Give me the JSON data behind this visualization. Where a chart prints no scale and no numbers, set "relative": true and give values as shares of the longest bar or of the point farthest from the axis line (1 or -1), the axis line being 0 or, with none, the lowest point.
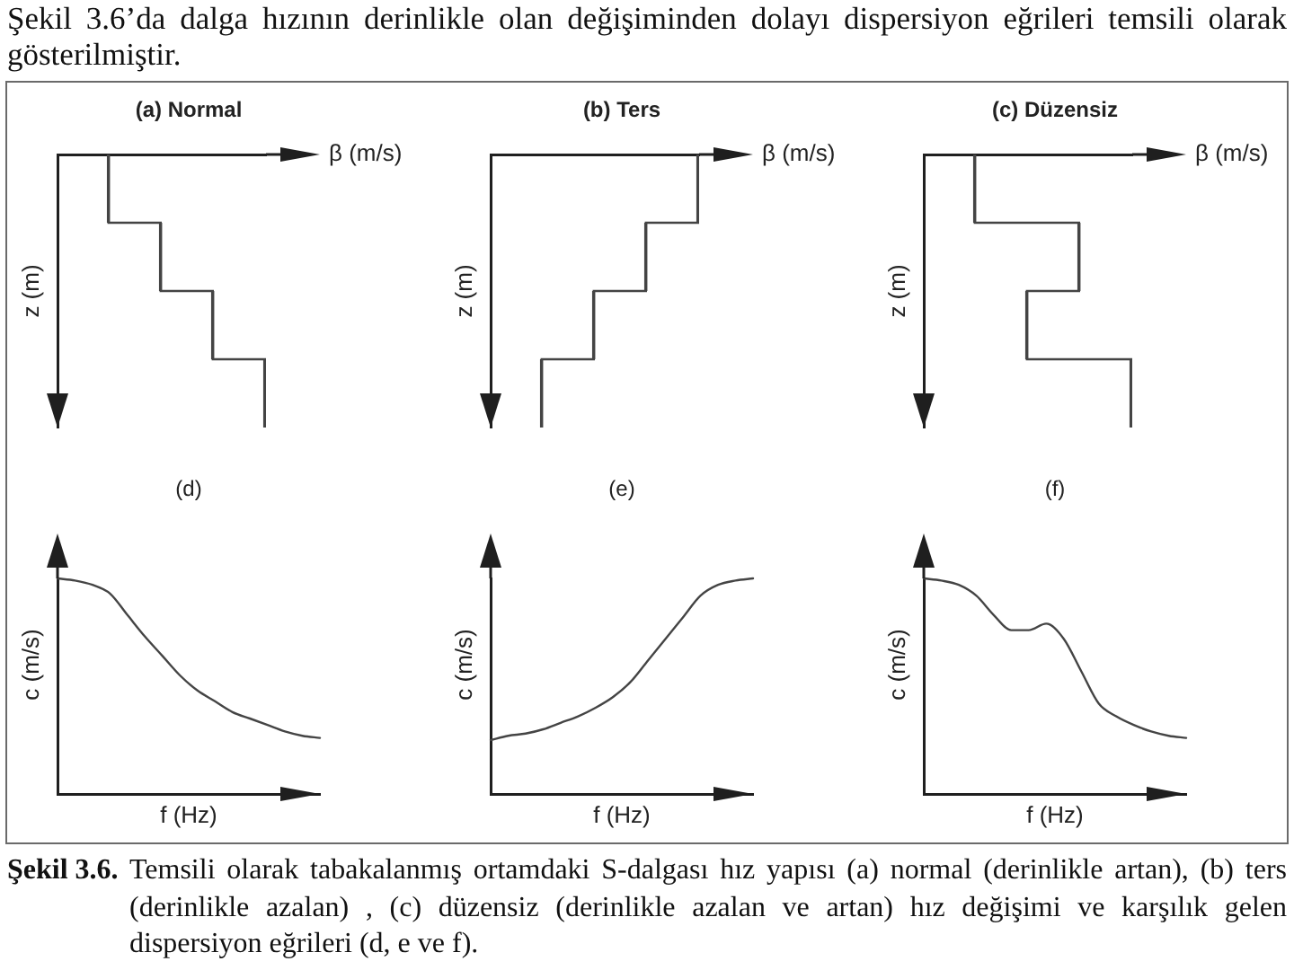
{
  "chart_data": [
    {
      "type": "bar",
      "orientation": "horizontal",
      "title": "(a) Normal",
      "xlabel": "β (m/s)",
      "ylabel": "z (m)",
      "relative": true,
      "categories": [
        null,
        null,
        null,
        null
      ],
      "values": [
        0.25,
        0.5,
        0.75,
        1
      ],
      "color": "#444444",
      "annotations": [
        "Şekil 3.6’da dalga hızının derinlikle olan değişiminden dolayı dispersiyon eğrileri temsili olarak gösterilmiştir."
      ]
    },
    {
      "type": "bar",
      "orientation": "horizontal",
      "title": "(b) Ters",
      "xlabel": "β (m/s)",
      "ylabel": "z (m)",
      "relative": true,
      "categories": [
        null,
        null,
        null,
        null
      ],
      "values": [
        1,
        0.75,
        0.5,
        0.25
      ],
      "color": "#444444"
    },
    {
      "type": "bar",
      "orientation": "horizontal",
      "title": "(c) Düzensiz",
      "xlabel": "β (m/s)",
      "ylabel": "z (m)",
      "relative": true,
      "categories": [
        null,
        null,
        null,
        null
      ],
      "values": [
        0.25,
        0.75,
        0.5,
        1
      ],
      "color": "#444444"
    },
    {
      "type": "line",
      "title": "(d)",
      "xlabel": "f (Hz)",
      "ylabel": "c (m/s)",
      "relative": true,
      "categories": [
        null,
        null,
        null,
        null,
        null,
        null,
        null,
        null,
        null,
        null,
        null,
        null,
        null,
        null,
        null,
        null
      ],
      "values": [
        1,
        0.99,
        0.97,
        0.93,
        0.83,
        0.73,
        0.64,
        0.55,
        0.48,
        0.43,
        0.38,
        0.35,
        0.32,
        0.29,
        0.27,
        0.26
      ],
      "color": "#444444"
    },
    {
      "type": "line",
      "title": "(e)",
      "xlabel": "f (Hz)",
      "ylabel": "c (m/s)",
      "relative": true,
      "categories": [
        null,
        null,
        null,
        null,
        null,
        null,
        null,
        null,
        null,
        null,
        null,
        null,
        null,
        null,
        null,
        null
      ],
      "values": [
        0.25,
        0.27,
        0.28,
        0.3,
        0.33,
        0.36,
        0.4,
        0.45,
        0.52,
        0.62,
        0.72,
        0.82,
        0.92,
        0.97,
        0.99,
        1
      ],
      "color": "#444444"
    },
    {
      "type": "line",
      "title": "(f)",
      "xlabel": "f (Hz)",
      "ylabel": "c (m/s)",
      "relative": true,
      "categories": [
        null,
        null,
        null,
        null,
        null,
        null,
        null,
        null,
        null,
        null,
        null,
        null,
        null,
        null,
        null,
        null
      ],
      "values": [
        1,
        0.99,
        0.97,
        0.92,
        0.83,
        0.76,
        0.76,
        0.79,
        0.72,
        0.57,
        0.42,
        0.36,
        0.32,
        0.29,
        0.27,
        0.26
      ],
      "color": "#444444",
      "annotations": [
        "Şekil 3.6.",
        "Temsili olarak tabakalanmış ortamdaki S-dalgası hız yapısı (a) normal (derinlikle artan), (b) ters (derinlikle azalan) , (c) düzensiz (derinlikle azalan ve artan) hız değişimi ve karşılık gelen dispersiyon eğrileri (d, e ve f)."
      ]
    }
  ]
}
